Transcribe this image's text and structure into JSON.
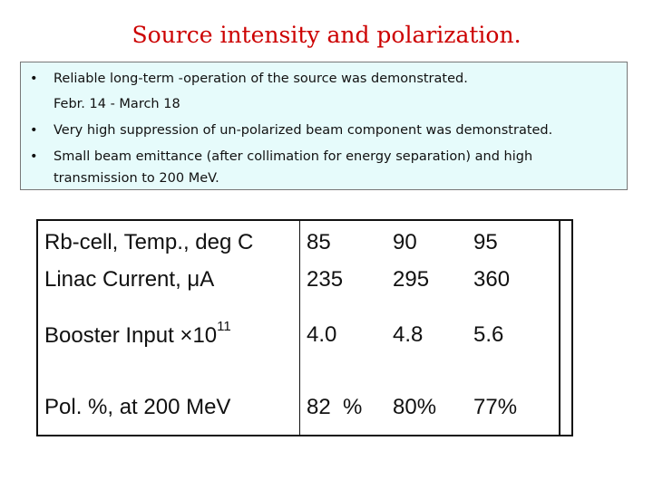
{
  "slide": {
    "title": "Source intensity and polarization.",
    "bullets": [
      {
        "lines": [
          "Reliable long-term -operation of the source  was demonstrated.",
          "Febr. 14 - March 18"
        ]
      },
      {
        "lines": [
          "Very high suppression of un-polarized beam component was demonstrated."
        ]
      },
      {
        "lines": [
          "Small beam emittance (after  collimation for energy separation) and high",
          "transmission to 200 MeV."
        ]
      }
    ],
    "bullet_symbol": "•"
  },
  "table": {
    "rows": [
      {
        "label": "Rb-cell, Temp., deg C",
        "values": [
          "85",
          "90",
          "95"
        ]
      },
      {
        "label": "Linac Current, μA",
        "values": [
          "235",
          "295",
          "360"
        ]
      },
      {
        "label_main": "Booster Input ×10",
        "label_sup": "11",
        "values": [
          "4.0",
          "4.8",
          "5.6"
        ]
      },
      {
        "label": "Pol. %, at 200 MeV",
        "values": [
          "82  %",
          "80%",
          "77%"
        ]
      }
    ]
  },
  "colors": {
    "title": "#cc0000",
    "box_bg": "#e6fbfb",
    "text": "#111111"
  }
}
